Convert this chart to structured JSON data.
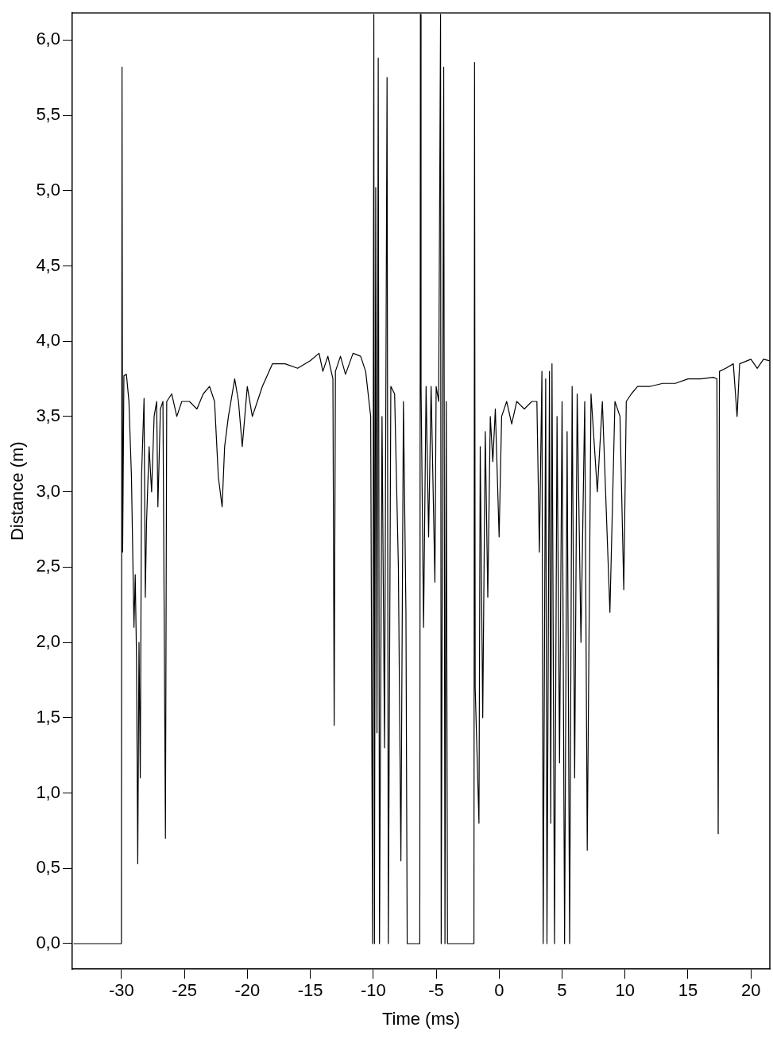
{
  "chart_data": {
    "type": "line",
    "xlabel": "Time (ms)",
    "ylabel": "Distance (m)",
    "xlim": [
      -33.9,
      21.5
    ],
    "xticks": [
      -30,
      -25,
      -20,
      -15,
      -10,
      -5,
      0,
      5,
      10,
      15,
      20
    ],
    "ylim": [
      -0.17,
      6.18
    ],
    "yticks": [
      {
        "value": 0,
        "label": "0,0"
      },
      {
        "value": 0.5,
        "label": "0,5"
      },
      {
        "value": 1,
        "label": "1,0"
      },
      {
        "value": 1.5,
        "label": "1,5"
      },
      {
        "value": 2,
        "label": "2,0"
      },
      {
        "value": 2.5,
        "label": "2,5"
      },
      {
        "value": 3,
        "label": "3,0"
      },
      {
        "value": 3.5,
        "label": "3,5"
      },
      {
        "value": 4,
        "label": "4,0"
      },
      {
        "value": 4.5,
        "label": "4,5"
      },
      {
        "value": 5,
        "label": "5,0"
      },
      {
        "value": 5.5,
        "label": "5,5"
      },
      {
        "value": 6,
        "label": "6,0"
      }
    ],
    "grid": false,
    "legend": false,
    "marker": "none",
    "line_style": "solid",
    "series": [
      {
        "color": "#000000",
        "x": [
          -33.8,
          -30.0,
          -29.95,
          -29.9,
          -29.8,
          -29.6,
          -29.4,
          -29.2,
          -29.0,
          -28.9,
          -28.8,
          -28.7,
          -28.6,
          -28.5,
          -28.4,
          -28.2,
          -28.1,
          -28.0,
          -27.8,
          -27.6,
          -27.4,
          -27.2,
          -27.1,
          -26.9,
          -26.7,
          -26.5,
          -26.4,
          -26.0,
          -25.6,
          -25.2,
          -24.6,
          -24.0,
          -23.5,
          -23.0,
          -22.6,
          -22.3,
          -22.0,
          -21.8,
          -21.5,
          -21.0,
          -20.7,
          -20.4,
          -20.0,
          -19.6,
          -19.2,
          -18.8,
          -18.0,
          -17.0,
          -16.0,
          -15.0,
          -14.3,
          -14.0,
          -13.6,
          -13.2,
          -13.1,
          -13.0,
          -12.6,
          -12.2,
          -11.6,
          -11.0,
          -10.6,
          -10.2,
          -10.05,
          -9.95,
          -9.9,
          -9.8,
          -9.7,
          -9.6,
          -9.5,
          -9.3,
          -9.1,
          -8.9,
          -8.8,
          -8.6,
          -8.3,
          -8.0,
          -7.8,
          -7.6,
          -7.4,
          -7.3,
          -6.3,
          -6.25,
          -6.2,
          -6.0,
          -5.8,
          -5.6,
          -5.4,
          -5.1,
          -5.0,
          -4.8,
          -4.65,
          -4.6,
          -4.4,
          -4.3,
          -4.2,
          -4.1,
          -2.0,
          -1.95,
          -1.9,
          -1.6,
          -1.5,
          -1.3,
          -1.1,
          -0.9,
          -0.7,
          -0.5,
          -0.3,
          0.0,
          0.2,
          0.6,
          1.0,
          1.4,
          2.0,
          2.6,
          3.0,
          3.2,
          3.4,
          3.5,
          3.7,
          3.8,
          4.0,
          4.1,
          4.2,
          4.4,
          4.6,
          4.8,
          5.0,
          5.2,
          5.4,
          5.6,
          5.8,
          6.0,
          6.2,
          6.5,
          6.8,
          7.0,
          7.3,
          7.8,
          8.2,
          8.8,
          9.2,
          9.6,
          9.9,
          10.1,
          10.5,
          11.0,
          12.0,
          13.0,
          14.0,
          15.0,
          16.0,
          17.0,
          17.3,
          17.4,
          17.5,
          18.0,
          18.6,
          18.9,
          19.1,
          20.0,
          20.5,
          21.0,
          21.5
        ],
        "values": [
          0,
          0,
          5.82,
          2.6,
          3.77,
          3.78,
          3.6,
          3.1,
          2.1,
          2.45,
          1.9,
          0.53,
          2.0,
          1.1,
          3.1,
          3.62,
          2.3,
          2.8,
          3.3,
          3.0,
          3.5,
          3.6,
          2.9,
          3.55,
          3.6,
          0.7,
          3.6,
          3.65,
          3.5,
          3.6,
          3.6,
          3.55,
          3.65,
          3.7,
          3.6,
          3.1,
          2.9,
          3.3,
          3.5,
          3.75,
          3.6,
          3.3,
          3.7,
          3.5,
          3.6,
          3.7,
          3.85,
          3.85,
          3.82,
          3.87,
          3.92,
          3.8,
          3.9,
          3.75,
          1.45,
          3.8,
          3.9,
          3.78,
          3.92,
          3.9,
          3.8,
          3.5,
          0,
          6.17,
          0,
          5.02,
          1.4,
          5.88,
          0,
          3.5,
          1.3,
          5.75,
          0,
          3.7,
          3.65,
          2.5,
          0.55,
          3.6,
          2.2,
          0,
          0,
          6.17,
          3.7,
          2.1,
          3.7,
          2.7,
          3.7,
          2.4,
          3.7,
          3.6,
          6.17,
          0,
          5.82,
          0,
          3.6,
          0,
          0,
          5.85,
          1.7,
          0.8,
          3.3,
          1.5,
          3.4,
          2.3,
          3.5,
          3.2,
          3.55,
          2.7,
          3.5,
          3.6,
          3.45,
          3.6,
          3.55,
          3.6,
          3.6,
          2.6,
          3.8,
          0,
          3.75,
          0,
          3.8,
          0.8,
          3.85,
          0,
          3.5,
          1.2,
          3.6,
          0,
          3.4,
          0,
          3.7,
          1.1,
          3.65,
          2.0,
          3.6,
          0.62,
          3.65,
          3.0,
          3.6,
          2.2,
          3.6,
          3.5,
          2.35,
          3.6,
          3.65,
          3.7,
          3.7,
          3.72,
          3.72,
          3.75,
          3.75,
          3.76,
          3.75,
          0.73,
          3.8,
          3.82,
          3.85,
          3.5,
          3.85,
          3.88,
          3.82,
          3.88,
          3.87
        ]
      }
    ]
  }
}
